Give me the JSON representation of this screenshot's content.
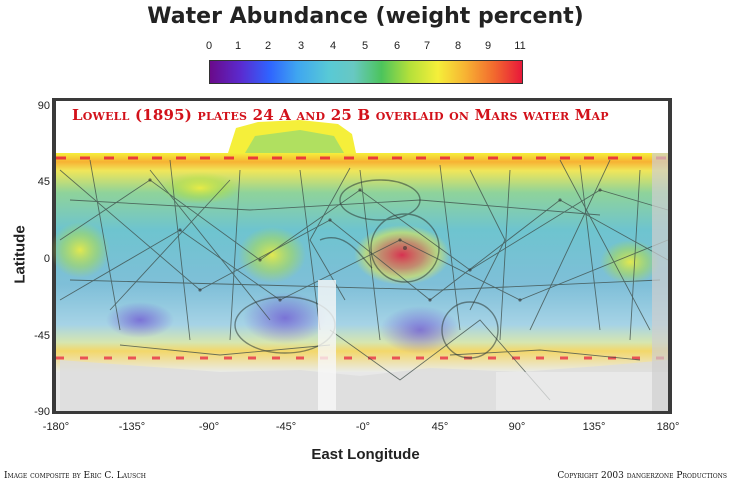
{
  "map": {
    "title": "Water Abundance (weight percent)",
    "overlay_note": "Lowell (1895) plates 24 A and 25 B overlaid on Mars water Map",
    "colorbar": {
      "ticks": [
        "0",
        "1",
        "2",
        "3",
        "4",
        "5",
        "6",
        "7",
        "8",
        "9",
        "11"
      ],
      "colors": [
        "#6a0a8a",
        "#5a2bd0",
        "#2f63ff",
        "#3fa6f0",
        "#58c9d6",
        "#68c8c2",
        "#4cc45c",
        "#b4e03a",
        "#f5ef3a",
        "#f7b233",
        "#f26a2e",
        "#e8183a"
      ]
    },
    "y_axis": {
      "label": "Latitude",
      "ticks": [
        "90",
        "45",
        "0",
        "-45",
        "-90"
      ]
    },
    "x_axis": {
      "label": "East Longitude",
      "ticks": [
        "-180°",
        "-135°",
        "-90°",
        "-45°",
        "-0°",
        "45°",
        "90°",
        "135°",
        "180°"
      ]
    },
    "credits": {
      "left": "Image composite by Eric C. Lausch",
      "right": "Copyright 2003 dangerzone Productions"
    }
  }
}
